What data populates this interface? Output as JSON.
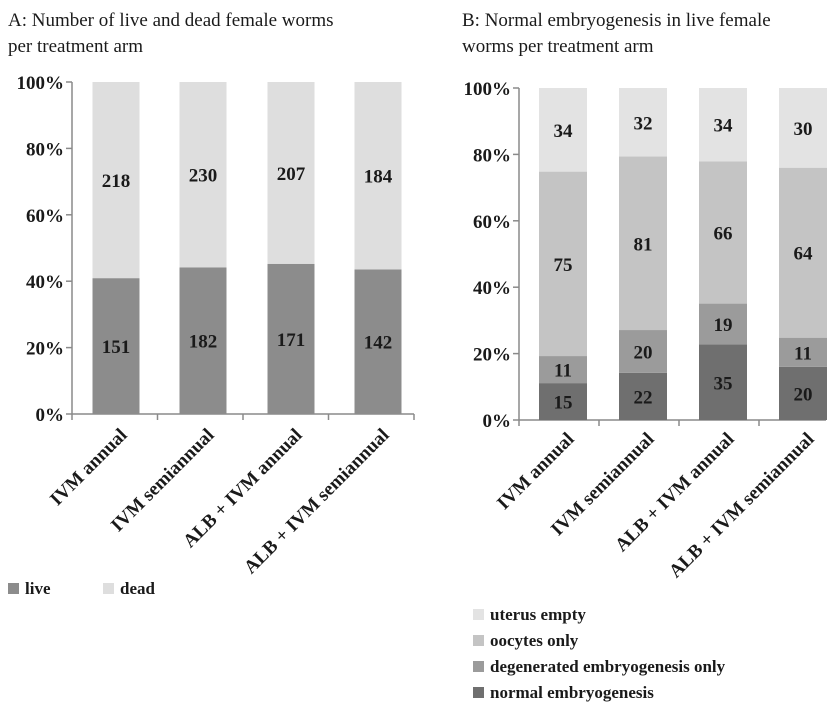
{
  "chart_data": [
    {
      "type": "bar",
      "stacked": "percent",
      "title": "A: Number of live and dead female worms per treatment arm",
      "title_lines": [
        "A: Number of live and dead female worms",
        "per treatment arm"
      ],
      "categories": [
        "IVM annual",
        "IVM semiannual",
        "ALB + IVM annual",
        "ALB + IVM semiannual"
      ],
      "series": [
        {
          "name": "live",
          "color": "#8c8c8c",
          "values": [
            151,
            182,
            171,
            142
          ]
        },
        {
          "name": "dead",
          "color": "#dedede",
          "values": [
            218,
            230,
            207,
            184
          ]
        }
      ],
      "ylim": [
        0,
        100
      ],
      "yticks": [
        "0%",
        "20%",
        "40%",
        "60%",
        "80%",
        "100%"
      ],
      "legend": "bottom-left",
      "grid": false
    },
    {
      "type": "bar",
      "stacked": "percent",
      "title": "B: Normal embryogenesis in live female worms per treatment arm",
      "title_lines": [
        "B: Normal embryogenesis in live female",
        "worms per treatment arm"
      ],
      "categories": [
        "IVM annual",
        "IVM semiannual",
        "ALB + IVM annual",
        "ALB + IVM semiannual"
      ],
      "series": [
        {
          "name": "normal embryogenesis",
          "color": "#6f6f6f",
          "values": [
            15,
            22,
            35,
            20
          ]
        },
        {
          "name": "degenerated embryogenesis only",
          "color": "#9b9b9b",
          "values": [
            11,
            20,
            19,
            11
          ]
        },
        {
          "name": "oocytes only",
          "color": "#c4c4c4",
          "values": [
            75,
            81,
            66,
            64
          ]
        },
        {
          "name": "uterus empty",
          "color": "#e3e3e3",
          "values": [
            34,
            32,
            34,
            30
          ]
        }
      ],
      "ylim": [
        0,
        100
      ],
      "yticks": [
        "0%",
        "20%",
        "40%",
        "60%",
        "80%",
        "100%"
      ],
      "legend": "bottom",
      "grid": false
    }
  ]
}
